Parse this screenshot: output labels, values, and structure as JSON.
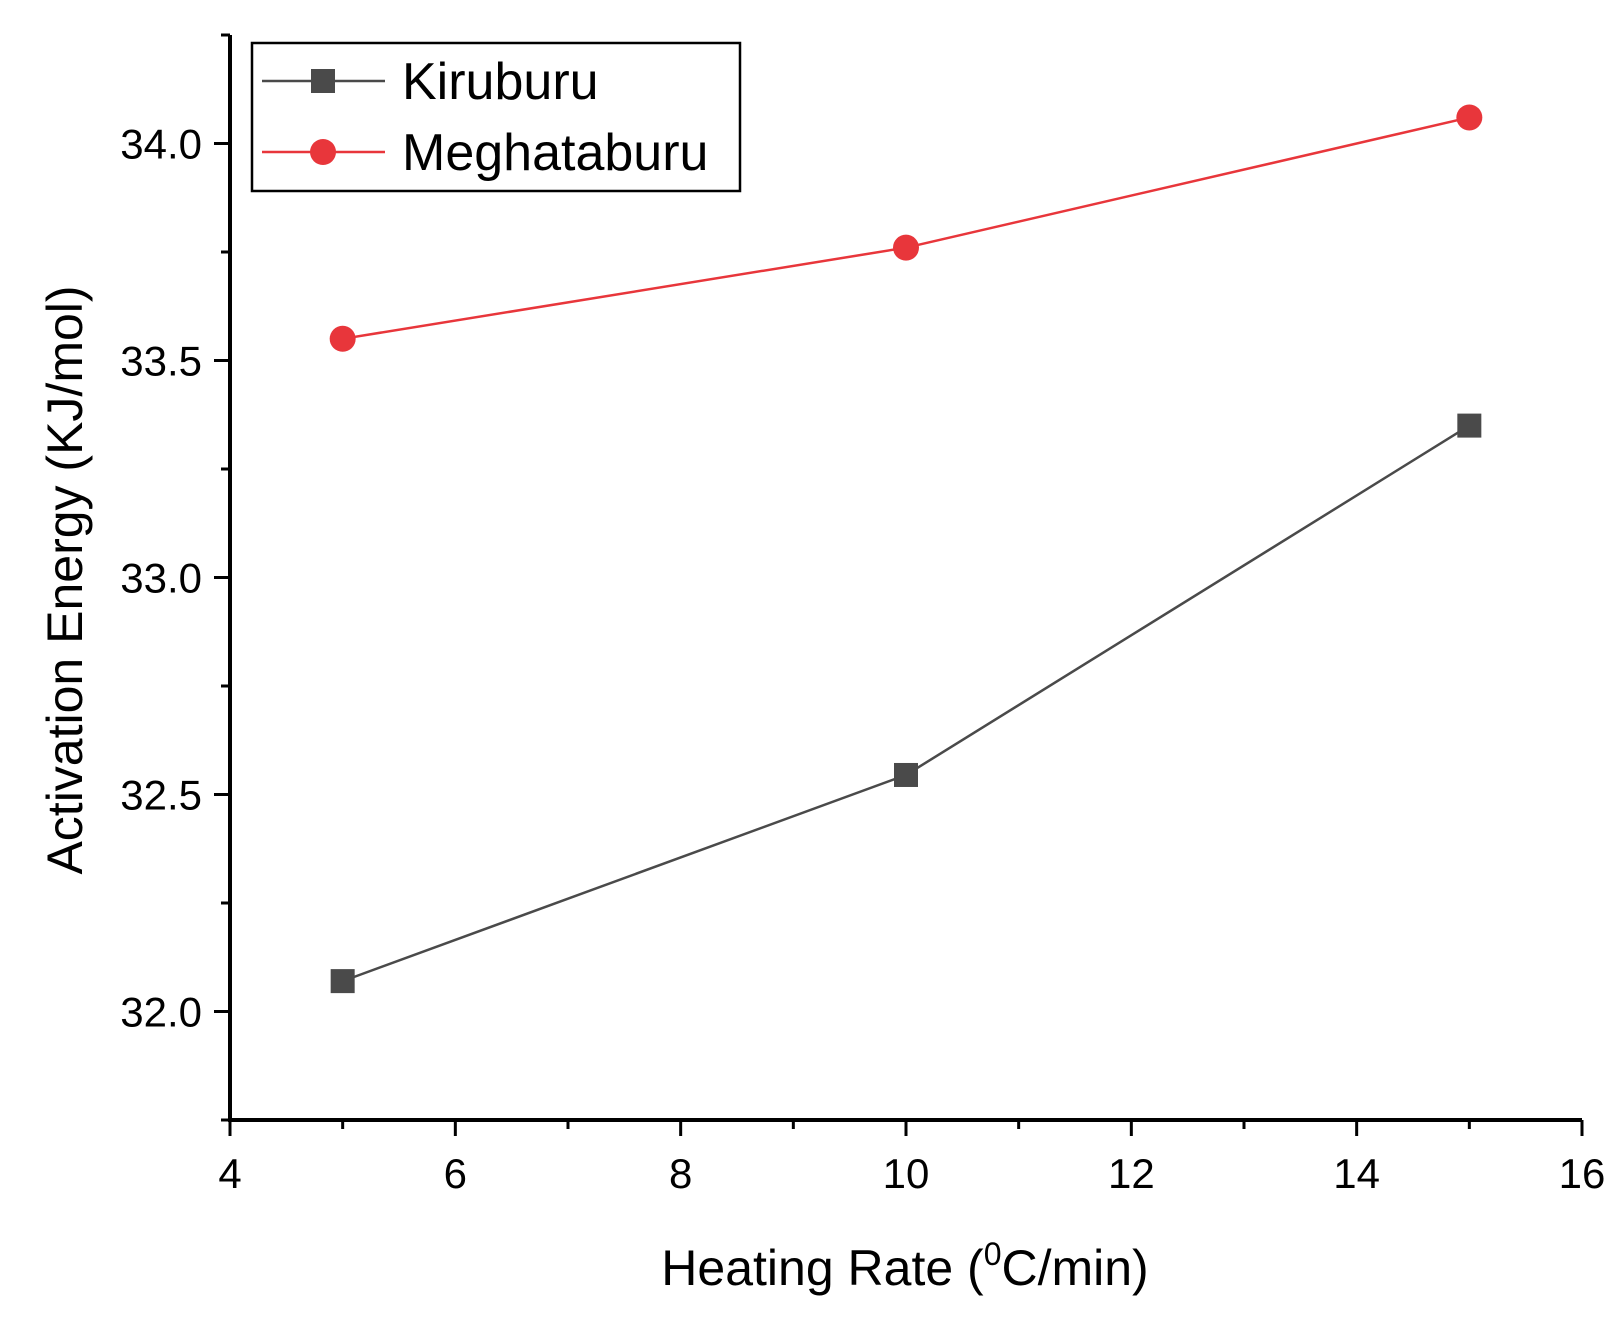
{
  "chart_data": {
    "type": "line",
    "xlabel_main": "Heating Rate (",
    "xlabel_sup": "0",
    "xlabel_rest": "C/min)",
    "ylabel": "Activation Energy (KJ/mol)",
    "xlim": [
      4,
      16
    ],
    "ylim": [
      31.75,
      34.25
    ],
    "x_ticks": [
      "4",
      "6",
      "8",
      "10",
      "12",
      "14",
      "16"
    ],
    "x_tick_values": [
      4,
      6,
      8,
      10,
      12,
      14,
      16
    ],
    "y_ticks": [
      "32.0",
      "32.5",
      "33.0",
      "33.5",
      "34.0"
    ],
    "y_tick_values": [
      32.0,
      32.5,
      33.0,
      33.5,
      34.0
    ],
    "grid": false,
    "legend_position": "top-left",
    "series": [
      {
        "name": "Kiruburu",
        "marker": "square",
        "color": "#4a4a4a",
        "x": [
          5,
          10,
          15
        ],
        "y": [
          32.07,
          32.545,
          33.35
        ]
      },
      {
        "name": "Meghataburu",
        "marker": "circle",
        "color": "#e8363b",
        "x": [
          5,
          10,
          15
        ],
        "y": [
          33.55,
          33.76,
          34.06
        ]
      }
    ]
  }
}
